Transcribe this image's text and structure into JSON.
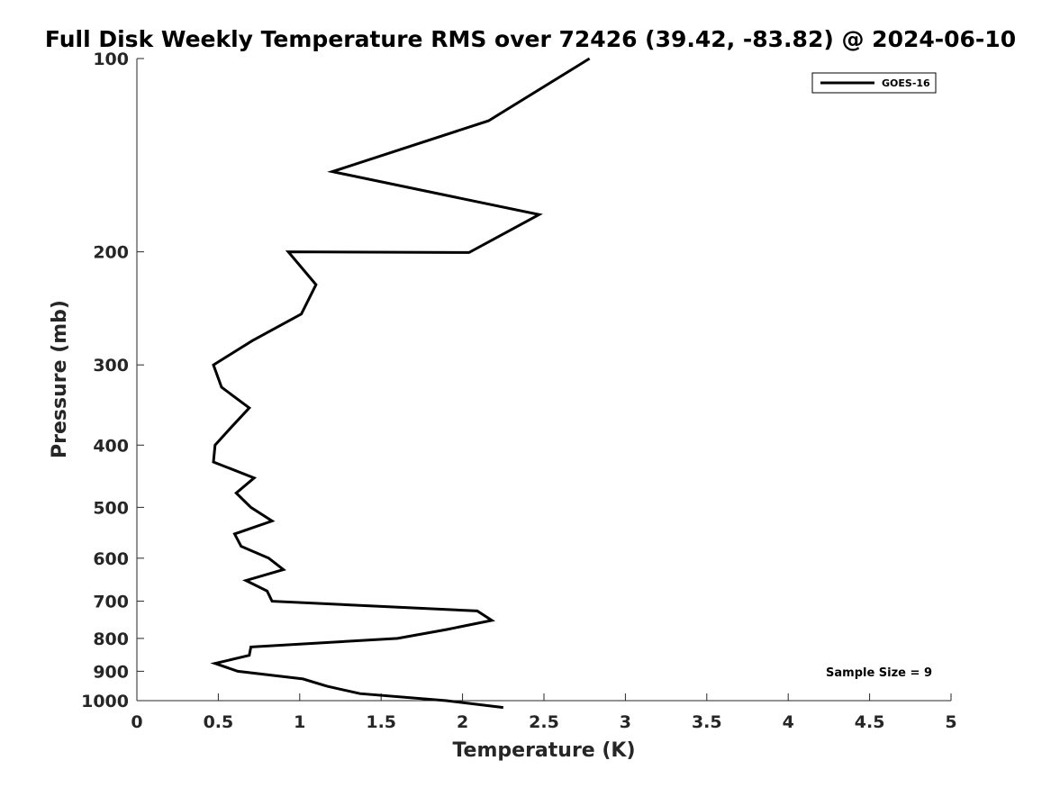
{
  "chart_data": {
    "type": "line",
    "title": "Full Disk Weekly Temperature RMS over 72426 (39.42, -83.82) @ 2024-06-10",
    "xlabel": "Temperature (K)",
    "ylabel": "Pressure (mb)",
    "xlim": [
      0,
      5
    ],
    "ylim": [
      100,
      1000
    ],
    "y_scale": "log",
    "y_reversed": true,
    "x_ticks": [
      0,
      0.5,
      1,
      1.5,
      2,
      2.5,
      3,
      3.5,
      4,
      4.5,
      5
    ],
    "x_tick_labels": [
      "0",
      "0.5",
      "1",
      "1.5",
      "2",
      "2.5",
      "3",
      "3.5",
      "4",
      "4.5",
      "5"
    ],
    "y_ticks": [
      100,
      200,
      300,
      400,
      500,
      600,
      700,
      800,
      900,
      1000
    ],
    "y_tick_labels": [
      "100",
      "200",
      "300",
      "400",
      "500",
      "600",
      "700",
      "800",
      "900",
      "1000"
    ],
    "grid": false,
    "legend_position": "top-right",
    "annotation": "Sample Size = 9",
    "series": [
      {
        "name": "GOES-16",
        "color": "#000000",
        "points": [
          {
            "x": 2.78,
            "y": 100
          },
          {
            "x": 2.16,
            "y": 125
          },
          {
            "x": 1.2,
            "y": 150
          },
          {
            "x": 2.47,
            "y": 175
          },
          {
            "x": 2.04,
            "y": 200.5
          },
          {
            "x": 0.93,
            "y": 200
          },
          {
            "x": 1.1,
            "y": 225
          },
          {
            "x": 1.01,
            "y": 250
          },
          {
            "x": 0.71,
            "y": 275
          },
          {
            "x": 0.47,
            "y": 300
          },
          {
            "x": 0.52,
            "y": 325
          },
          {
            "x": 0.69,
            "y": 350
          },
          {
            "x": 0.58,
            "y": 375
          },
          {
            "x": 0.48,
            "y": 400
          },
          {
            "x": 0.47,
            "y": 425
          },
          {
            "x": 0.72,
            "y": 450
          },
          {
            "x": 0.61,
            "y": 475
          },
          {
            "x": 0.7,
            "y": 500
          },
          {
            "x": 0.83,
            "y": 525
          },
          {
            "x": 0.6,
            "y": 550
          },
          {
            "x": 0.64,
            "y": 575
          },
          {
            "x": 0.81,
            "y": 600
          },
          {
            "x": 0.9,
            "y": 625
          },
          {
            "x": 0.67,
            "y": 650
          },
          {
            "x": 0.8,
            "y": 675
          },
          {
            "x": 0.83,
            "y": 700
          },
          {
            "x": 2.09,
            "y": 725
          },
          {
            "x": 2.18,
            "y": 750
          },
          {
            "x": 1.9,
            "y": 775
          },
          {
            "x": 1.6,
            "y": 800
          },
          {
            "x": 0.7,
            "y": 825
          },
          {
            "x": 0.69,
            "y": 850
          },
          {
            "x": 0.48,
            "y": 875
          },
          {
            "x": 0.62,
            "y": 900
          },
          {
            "x": 1.02,
            "y": 925
          },
          {
            "x": 1.17,
            "y": 950
          },
          {
            "x": 1.37,
            "y": 975
          },
          {
            "x": 1.9,
            "y": 1000
          },
          {
            "x": 2.25,
            "y": 1025
          }
        ]
      }
    ]
  }
}
